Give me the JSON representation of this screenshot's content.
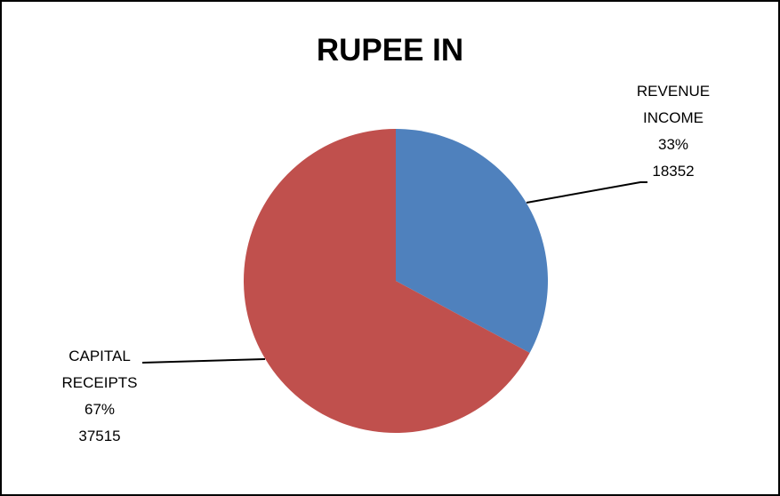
{
  "chart_data": {
    "type": "pie",
    "title": "RUPEE IN",
    "categories": [
      "REVENUE INCOME",
      "CAPITAL RECEIPTS"
    ],
    "values": [
      18352,
      37515
    ],
    "percent_labels": [
      "33%",
      "67%"
    ],
    "colors": [
      "#4f81bd",
      "#c0504d"
    ]
  }
}
